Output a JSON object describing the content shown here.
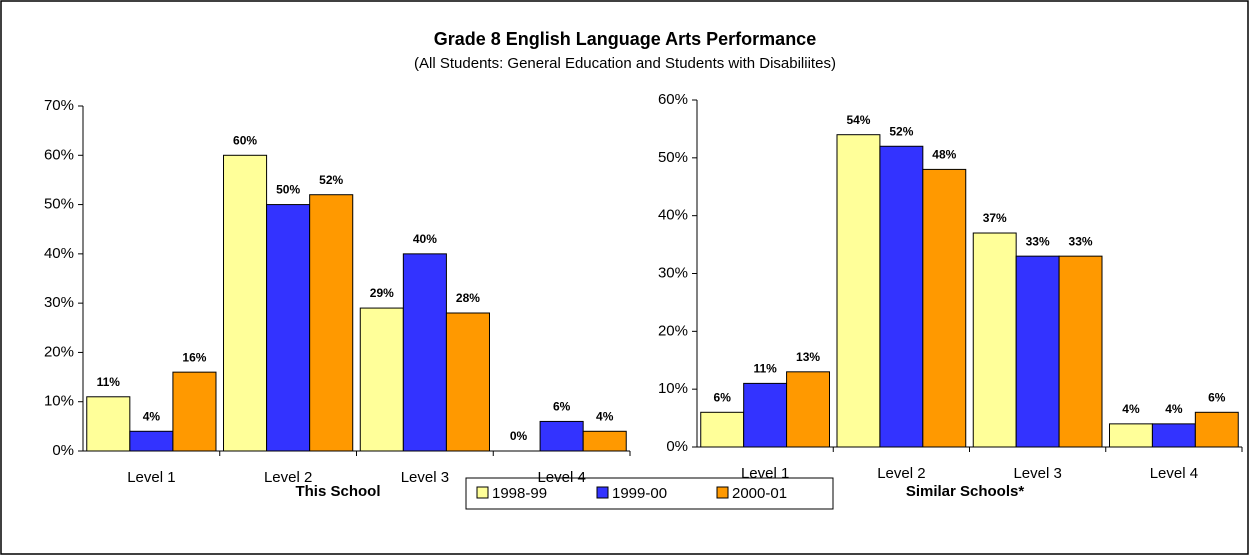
{
  "title": "Grade 8 English Language Arts Performance",
  "subtitle": "(All Students: General Education and Students with Disabiliites)",
  "chart_data": [
    {
      "type": "bar",
      "x_label": "This School",
      "categories": [
        "Level 1",
        "Level 2",
        "Level 3",
        "Level 4"
      ],
      "series": [
        {
          "name": "1998-99",
          "color": "#ffff99",
          "values": [
            11,
            60,
            29,
            0
          ],
          "value_labels": [
            "11%",
            "60%",
            "29%",
            "0%"
          ]
        },
        {
          "name": "1999-00",
          "color": "#3333ff",
          "values": [
            4,
            50,
            40,
            6
          ],
          "value_labels": [
            "4%",
            "50%",
            "40%",
            "6%"
          ]
        },
        {
          "name": "2000-01",
          "color": "#ff9900",
          "values": [
            16,
            52,
            28,
            4
          ],
          "value_labels": [
            "16%",
            "52%",
            "28%",
            "4%"
          ]
        }
      ],
      "ylim": [
        0,
        70
      ],
      "yticks": [
        {
          "value": 0,
          "label": "0%"
        },
        {
          "value": 10,
          "label": "10%"
        },
        {
          "value": 20,
          "label": "20%"
        },
        {
          "value": 30,
          "label": "30%"
        },
        {
          "value": 40,
          "label": "40%"
        },
        {
          "value": 50,
          "label": "50%"
        },
        {
          "value": 60,
          "label": "60%"
        },
        {
          "value": 70,
          "label": "70%"
        }
      ]
    },
    {
      "type": "bar",
      "x_label": "Similar Schools*",
      "categories": [
        "Level 1",
        "Level 2",
        "Level 3",
        "Level 4"
      ],
      "series": [
        {
          "color": "#ffff99",
          "values": [
            6,
            54,
            37,
            4
          ],
          "value_labels": [
            "6%",
            "54%",
            "37%",
            "4%"
          ]
        },
        {
          "color": "#3333ff",
          "values": [
            11,
            52,
            33,
            4
          ],
          "value_labels": [
            "11%",
            "52%",
            "33%",
            "4%"
          ]
        },
        {
          "color": "#ff9900",
          "values": [
            13,
            48,
            33,
            6
          ],
          "value_labels": [
            "13%",
            "48%",
            "33%",
            "6%"
          ]
        }
      ],
      "ylim": [
        0,
        60
      ],
      "yticks": [
        {
          "value": 0,
          "label": "0%"
        },
        {
          "value": 10,
          "label": "10%"
        },
        {
          "value": 20,
          "label": "20%"
        },
        {
          "value": 30,
          "label": "30%"
        },
        {
          "value": 40,
          "label": "40%"
        },
        {
          "value": 50,
          "label": "50%"
        },
        {
          "value": 60,
          "label": "60%"
        }
      ]
    }
  ]
}
